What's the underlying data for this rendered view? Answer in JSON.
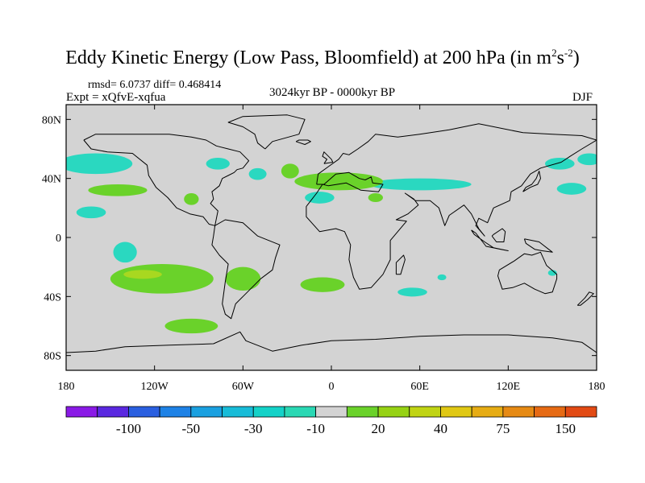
{
  "title": {
    "main": "Eddy Kinetic Energy (Low Pass, Bloomfield) at 200 hPa (in m",
    "exp1": "2",
    "mid": "s",
    "exp2": "-2",
    "close": ")"
  },
  "stats": "rmsd= 6.0737 diff= 0.468414",
  "experiment": "Expt = xQfvE-xqfua",
  "period": "3024kyr BP - 0000kyr BP",
  "season": "DJF",
  "axes": {
    "x_ticks": [
      {
        "lon": -180,
        "label": "180"
      },
      {
        "lon": -120,
        "label": "120W"
      },
      {
        "lon": -60,
        "label": "60W"
      },
      {
        "lon": 0,
        "label": "0"
      },
      {
        "lon": 60,
        "label": "60E"
      },
      {
        "lon": 120,
        "label": "120E"
      },
      {
        "lon": 180,
        "label": "180"
      }
    ],
    "y_ticks": [
      {
        "lat": 80,
        "label": "80N"
      },
      {
        "lat": 40,
        "label": "40N"
      },
      {
        "lat": 0,
        "label": "0"
      },
      {
        "lat": -40,
        "label": "40S"
      },
      {
        "lat": -80,
        "label": "80S"
      }
    ],
    "lon_range": [
      -180,
      180
    ],
    "lat_range": [
      -90,
      90
    ]
  },
  "colorbar": {
    "colors": [
      "#8a1ae6",
      "#5a28e0",
      "#2a5fe0",
      "#1e82e6",
      "#1aa0e0",
      "#18bcd8",
      "#14d2c8",
      "#2ad8b4",
      "#d3d3d3",
      "#6ad22a",
      "#96d214",
      "#c0d414",
      "#e0c814",
      "#e6ac14",
      "#e68a14",
      "#e66a14",
      "#e24a14"
    ],
    "labels": [
      {
        "after_box": 2,
        "text": "-100"
      },
      {
        "after_box": 4,
        "text": "-50"
      },
      {
        "after_box": 6,
        "text": "-30"
      },
      {
        "after_box": 8,
        "text": "-10"
      },
      {
        "after_box": 10,
        "text": "20"
      },
      {
        "after_box": 12,
        "text": "40"
      },
      {
        "after_box": 14,
        "text": "75"
      },
      {
        "after_box": 16,
        "text": "150"
      }
    ]
  },
  "fill_colors": {
    "background": "#d3d3d3",
    "cyan": "#2ad8c0",
    "green": "#6ad22a",
    "yellow_green": "#a8d820"
  },
  "anomaly_regions": [
    {
      "name": "north-atlantic-west",
      "class": "cyan",
      "lon": -160,
      "lat": 50,
      "rx": 25,
      "ry": 7
    },
    {
      "name": "north-america-west",
      "class": "cyan",
      "lon": -77,
      "lat": 50,
      "rx": 8,
      "ry": 4
    },
    {
      "name": "central-atlantic-north",
      "class": "cyan",
      "lon": -50,
      "lat": 43,
      "rx": 6,
      "ry": 4
    },
    {
      "name": "mediterranean-cyan-west",
      "class": "cyan",
      "lon": -8,
      "lat": 27,
      "rx": 10,
      "ry": 4
    },
    {
      "name": "north-pacific-east",
      "class": "cyan",
      "lon": 155,
      "lat": 50,
      "rx": 10,
      "ry": 4
    },
    {
      "name": "north-pacific-far-east",
      "class": "cyan",
      "lon": 175,
      "lat": 53,
      "rx": 8,
      "ry": 4
    },
    {
      "name": "asia-cyan-band",
      "class": "cyan",
      "lon": 60,
      "lat": 36,
      "rx": 35,
      "ry": 4
    },
    {
      "name": "pacific-cyan-northwest",
      "class": "cyan",
      "lon": 163,
      "lat": 33,
      "rx": 10,
      "ry": 4
    },
    {
      "name": "subtropic-pacific-cyan",
      "class": "cyan",
      "lon": -163,
      "lat": 17,
      "rx": 10,
      "ry": 4
    },
    {
      "name": "east-pacific-cyan",
      "class": "cyan",
      "lon": -140,
      "lat": -10,
      "rx": 8,
      "ry": 7
    },
    {
      "name": "indian-ocean-cyan",
      "class": "cyan",
      "lon": 55,
      "lat": -37,
      "rx": 10,
      "ry": 3
    },
    {
      "name": "south-atlantic-cyan-small",
      "class": "cyan",
      "lon": 75,
      "lat": -27,
      "rx": 3,
      "ry": 2
    },
    {
      "name": "south-pacific-cyan-small",
      "class": "cyan",
      "lon": 150,
      "lat": -24,
      "rx": 3,
      "ry": 2
    },
    {
      "name": "north-pacific-green",
      "class": "green",
      "lon": -145,
      "lat": 32,
      "rx": 20,
      "ry": 4
    },
    {
      "name": "north-america-green",
      "class": "green",
      "lon": -95,
      "lat": 26,
      "rx": 5,
      "ry": 4
    },
    {
      "name": "mediterranean-green",
      "class": "green",
      "lon": 5,
      "lat": 38,
      "rx": 30,
      "ry": 6
    },
    {
      "name": "atlantic-green-north",
      "class": "green",
      "lon": -28,
      "lat": 45,
      "rx": 6,
      "ry": 5
    },
    {
      "name": "africa-green-north",
      "class": "green",
      "lon": 30,
      "lat": 27,
      "rx": 5,
      "ry": 3
    },
    {
      "name": "south-pacific-green-main",
      "class": "green",
      "lon": -115,
      "lat": -28,
      "rx": 35,
      "ry": 10
    },
    {
      "name": "south-pacific-green-east",
      "class": "green",
      "lon": -60,
      "lat": -28,
      "rx": 12,
      "ry": 8
    },
    {
      "name": "south-atlantic-green",
      "class": "green",
      "lon": -6,
      "lat": -32,
      "rx": 15,
      "ry": 5
    },
    {
      "name": "southern-ocean-green",
      "class": "green",
      "lon": -95,
      "lat": -60,
      "rx": 18,
      "ry": 5
    },
    {
      "name": "south-pacific-yellow-green",
      "class": "yellow_green",
      "lon": -128,
      "lat": -25,
      "rx": 13,
      "ry": 3
    }
  ],
  "coastlines": [
    {
      "name": "north-america-coast",
      "points": [
        [
          -168,
          66
        ],
        [
          -163,
          60
        ],
        [
          -152,
          58
        ],
        [
          -135,
          57
        ],
        [
          -125,
          49
        ],
        [
          -124,
          42
        ],
        [
          -119,
          34
        ],
        [
          -111,
          27
        ],
        [
          -105,
          20
        ],
        [
          -96,
          16
        ],
        [
          -87,
          14
        ],
        [
          -83,
          9
        ],
        [
          -79,
          8
        ],
        [
          -77,
          18
        ],
        [
          -82,
          23
        ],
        [
          -80,
          26
        ],
        [
          -81,
          31
        ],
        [
          -76,
          35
        ],
        [
          -74,
          40
        ],
        [
          -70,
          42
        ],
        [
          -66,
          44
        ],
        [
          -64,
          46
        ],
        [
          -60,
          47
        ],
        [
          -56,
          52
        ],
        [
          -62,
          58
        ],
        [
          -70,
          60
        ],
        [
          -78,
          62
        ],
        [
          -85,
          66
        ],
        [
          -95,
          68
        ],
        [
          -110,
          70
        ],
        [
          -130,
          70
        ],
        [
          -145,
          70
        ],
        [
          -160,
          70
        ],
        [
          -168,
          66
        ]
      ]
    },
    {
      "name": "greenland-coast",
      "points": [
        [
          -45,
          60
        ],
        [
          -40,
          65
        ],
        [
          -22,
          70
        ],
        [
          -18,
          80
        ],
        [
          -30,
          83
        ],
        [
          -60,
          82
        ],
        [
          -70,
          78
        ],
        [
          -60,
          75
        ],
        [
          -52,
          70
        ],
        [
          -50,
          64
        ],
        [
          -45,
          60
        ]
      ]
    },
    {
      "name": "south-america-coast",
      "points": [
        [
          -79,
          8
        ],
        [
          -72,
          12
        ],
        [
          -60,
          10
        ],
        [
          -50,
          1
        ],
        [
          -35,
          -5
        ],
        [
          -38,
          -14
        ],
        [
          -40,
          -22
        ],
        [
          -48,
          -28
        ],
        [
          -58,
          -38
        ],
        [
          -65,
          -45
        ],
        [
          -68,
          -55
        ],
        [
          -72,
          -52
        ],
        [
          -74,
          -45
        ],
        [
          -72,
          -30
        ],
        [
          -70,
          -18
        ],
        [
          -76,
          -12
        ],
        [
          -81,
          -5
        ],
        [
          -80,
          1
        ],
        [
          -79,
          8
        ]
      ]
    },
    {
      "name": "eurasia-africa-coast",
      "points": [
        [
          -10,
          36
        ],
        [
          -9,
          43
        ],
        [
          -2,
          48
        ],
        [
          5,
          53
        ],
        [
          8,
          57
        ],
        [
          12,
          56
        ],
        [
          18,
          60
        ],
        [
          25,
          65
        ],
        [
          30,
          70
        ],
        [
          45,
          68
        ],
        [
          60,
          70
        ],
        [
          80,
          73
        ],
        [
          100,
          77
        ],
        [
          130,
          71
        ],
        [
          150,
          70
        ],
        [
          170,
          69
        ],
        [
          180,
          66
        ],
        [
          170,
          60
        ],
        [
          162,
          55
        ],
        [
          156,
          51
        ],
        [
          142,
          47
        ],
        [
          135,
          43
        ],
        [
          129,
          35
        ],
        [
          122,
          31
        ],
        [
          121,
          25
        ],
        [
          110,
          20
        ],
        [
          106,
          10
        ],
        [
          100,
          13
        ],
        [
          98,
          8
        ],
        [
          104,
          1
        ],
        [
          100,
          6
        ],
        [
          95,
          16
        ],
        [
          90,
          22
        ],
        [
          80,
          15
        ],
        [
          77,
          8
        ],
        [
          73,
          20
        ],
        [
          67,
          25
        ],
        [
          57,
          25
        ],
        [
          50,
          30
        ],
        [
          56,
          26
        ],
        [
          59,
          22
        ],
        [
          52,
          16
        ],
        [
          44,
          12
        ],
        [
          51,
          11
        ],
        [
          40,
          -2
        ],
        [
          40,
          -15
        ],
        [
          35,
          -25
        ],
        [
          27,
          -34
        ],
        [
          19,
          -35
        ],
        [
          15,
          -27
        ],
        [
          12,
          -15
        ],
        [
          13,
          -5
        ],
        [
          9,
          4
        ],
        [
          3,
          6
        ],
        [
          -8,
          4
        ],
        [
          -17,
          14
        ],
        [
          -17,
          21
        ],
        [
          -10,
          30
        ],
        [
          -6,
          36
        ],
        [
          -2,
          35
        ],
        [
          10,
          37
        ],
        [
          20,
          32
        ],
        [
          32,
          31
        ],
        [
          35,
          36
        ],
        [
          28,
          37
        ],
        [
          27,
          41
        ],
        [
          23,
          39
        ],
        [
          19,
          40
        ],
        [
          12,
          44
        ],
        [
          3,
          43
        ],
        [
          -5,
          36
        ],
        [
          -10,
          36
        ]
      ]
    },
    {
      "name": "australia-coast",
      "points": [
        [
          114,
          -22
        ],
        [
          113,
          -26
        ],
        [
          116,
          -35
        ],
        [
          123,
          -34
        ],
        [
          131,
          -31
        ],
        [
          138,
          -35
        ],
        [
          145,
          -38
        ],
        [
          150,
          -37
        ],
        [
          153,
          -28
        ],
        [
          153,
          -25
        ],
        [
          146,
          -19
        ],
        [
          142,
          -10
        ],
        [
          136,
          -12
        ],
        [
          131,
          -11
        ],
        [
          124,
          -16
        ],
        [
          114,
          -22
        ]
      ]
    },
    {
      "name": "antarctica-coast",
      "points": [
        [
          -180,
          -78
        ],
        [
          -160,
          -77
        ],
        [
          -140,
          -74
        ],
        [
          -110,
          -73
        ],
        [
          -80,
          -72
        ],
        [
          -62,
          -64
        ],
        [
          -58,
          -70
        ],
        [
          -40,
          -77
        ],
        [
          -20,
          -73
        ],
        [
          0,
          -70
        ],
        [
          30,
          -69
        ],
        [
          60,
          -67
        ],
        [
          90,
          -66
        ],
        [
          120,
          -66
        ],
        [
          150,
          -68
        ],
        [
          170,
          -71
        ],
        [
          180,
          -78
        ]
      ]
    },
    {
      "name": "japan-coast",
      "points": [
        [
          130,
          31
        ],
        [
          135,
          34
        ],
        [
          140,
          36
        ],
        [
          142,
          40
        ],
        [
          141,
          45
        ],
        [
          139,
          40
        ],
        [
          136,
          36
        ],
        [
          132,
          34
        ],
        [
          130,
          31
        ]
      ]
    },
    {
      "name": "britain-coast",
      "points": [
        [
          -5,
          50
        ],
        [
          1,
          51
        ],
        [
          0,
          53
        ],
        [
          -3,
          56
        ],
        [
          -5,
          58
        ],
        [
          -6,
          55
        ],
        [
          -3,
          53
        ],
        [
          -5,
          50
        ]
      ]
    },
    {
      "name": "madagascar-coast",
      "points": [
        [
          44,
          -25
        ],
        [
          47,
          -25
        ],
        [
          50,
          -15
        ],
        [
          49,
          -12
        ],
        [
          44,
          -17
        ],
        [
          44,
          -25
        ]
      ]
    },
    {
      "name": "new-zealand-coast",
      "points": [
        [
          167,
          -46
        ],
        [
          172,
          -41
        ],
        [
          175,
          -37
        ],
        [
          178,
          -38
        ],
        [
          174,
          -42
        ],
        [
          169,
          -46
        ],
        [
          167,
          -46
        ]
      ]
    },
    {
      "name": "indonesia-coast",
      "points": [
        [
          95,
          5
        ],
        [
          98,
          3
        ],
        [
          105,
          -6
        ],
        [
          115,
          -8
        ],
        [
          120,
          -9
        ],
        [
          110,
          -7
        ],
        [
          104,
          -3
        ],
        [
          97,
          2
        ],
        [
          95,
          5
        ]
      ]
    },
    {
      "name": "borneo-coast",
      "points": [
        [
          109,
          1
        ],
        [
          112,
          -3
        ],
        [
          117,
          -3
        ],
        [
          118,
          4
        ],
        [
          116,
          6
        ],
        [
          110,
          2
        ],
        [
          109,
          1
        ]
      ]
    },
    {
      "name": "new-guinea-coast",
      "points": [
        [
          131,
          -1
        ],
        [
          141,
          -3
        ],
        [
          150,
          -10
        ],
        [
          143,
          -9
        ],
        [
          138,
          -8
        ],
        [
          132,
          -4
        ],
        [
          131,
          -1
        ]
      ]
    },
    {
      "name": "iceland-coast",
      "points": [
        [
          -24,
          65
        ],
        [
          -18,
          63
        ],
        [
          -14,
          65
        ],
        [
          -16,
          66
        ],
        [
          -22,
          66
        ],
        [
          -24,
          65
        ]
      ]
    }
  ]
}
